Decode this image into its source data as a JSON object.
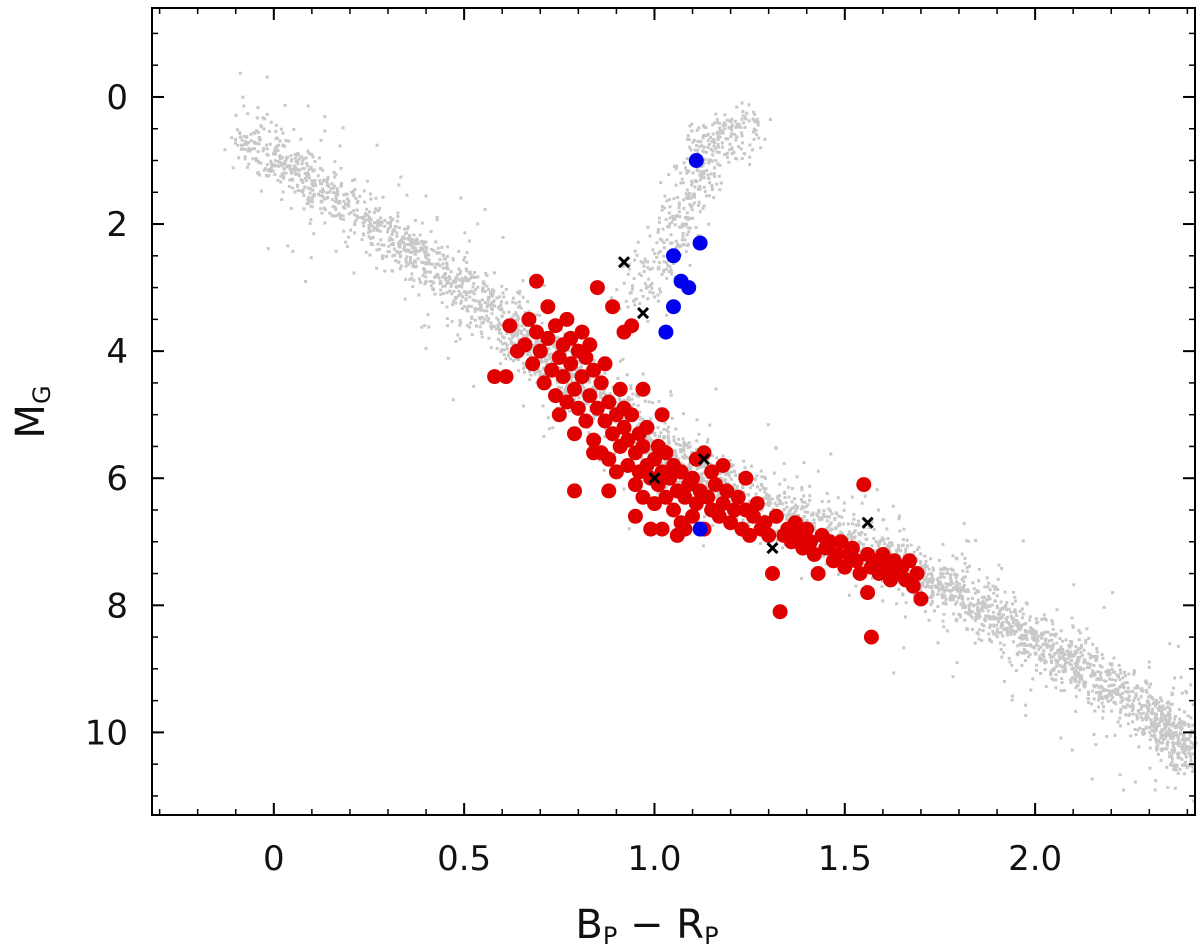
{
  "chart_data": {
    "type": "scatter",
    "title": "",
    "xlabel": {
      "main_b": "B",
      "sub_b": "P",
      "minus": " − ",
      "main_r": "R",
      "sub_r": "P"
    },
    "ylabel": {
      "main": "M",
      "sub": "G"
    },
    "xlim": [
      -0.32,
      2.42
    ],
    "ylim": [
      11.3,
      -1.4
    ],
    "y_inverted": true,
    "grid": false,
    "legend": "none",
    "x_ticks": [
      0,
      0.5,
      1.0,
      1.5,
      2.0
    ],
    "x_tick_labels": [
      "0",
      "0.5",
      "1.0",
      "1.5",
      "2.0"
    ],
    "y_ticks": [
      0,
      2,
      4,
      6,
      8,
      10
    ],
    "y_tick_labels": [
      "0",
      "2",
      "4",
      "6",
      "8",
      "10"
    ],
    "colors": {
      "background_stars": "#c8c8c8",
      "red": "#e00000",
      "blue": "#0000ee",
      "cross": "#000000"
    },
    "background_sequence": {
      "description_free": true,
      "main_sequence": [
        [
          -0.08,
          0.6
        ],
        [
          0.2,
          1.8
        ],
        [
          0.45,
          2.8
        ],
        [
          0.65,
          3.8
        ],
        [
          0.8,
          4.5
        ],
        [
          1.0,
          5.5
        ],
        [
          1.2,
          6.2
        ],
        [
          1.45,
          6.8
        ],
        [
          1.7,
          7.5
        ],
        [
          1.9,
          8.2
        ],
        [
          2.1,
          8.9
        ],
        [
          2.3,
          9.7
        ],
        [
          2.42,
          10.4
        ]
      ],
      "giant_branch": [
        [
          0.95,
          3.2
        ],
        [
          1.05,
          2.2
        ],
        [
          1.1,
          1.3
        ],
        [
          1.15,
          0.7
        ],
        [
          1.25,
          0.5
        ]
      ]
    },
    "series": [
      {
        "marker": "circle",
        "color": "#e00000",
        "points": [
          [
            0.61,
            4.4
          ],
          [
            0.62,
            3.6
          ],
          [
            0.64,
            4.0
          ],
          [
            0.66,
            3.9
          ],
          [
            0.67,
            3.5
          ],
          [
            0.68,
            4.2
          ],
          [
            0.69,
            3.7
          ],
          [
            0.69,
            2.9
          ],
          [
            0.7,
            4.0
          ],
          [
            0.71,
            4.5
          ],
          [
            0.72,
            3.3
          ],
          [
            0.72,
            3.8
          ],
          [
            0.73,
            4.3
          ],
          [
            0.74,
            4.7
          ],
          [
            0.74,
            3.6
          ],
          [
            0.75,
            4.1
          ],
          [
            0.75,
            5.0
          ],
          [
            0.76,
            3.9
          ],
          [
            0.76,
            4.4
          ],
          [
            0.77,
            3.5
          ],
          [
            0.77,
            4.8
          ],
          [
            0.78,
            4.2
          ],
          [
            0.78,
            3.8
          ],
          [
            0.79,
            4.6
          ],
          [
            0.79,
            5.3
          ],
          [
            0.8,
            4.0
          ],
          [
            0.8,
            4.9
          ],
          [
            0.81,
            3.7
          ],
          [
            0.81,
            4.4
          ],
          [
            0.82,
            4.1
          ],
          [
            0.82,
            5.1
          ],
          [
            0.83,
            4.7
          ],
          [
            0.83,
            3.9
          ],
          [
            0.84,
            4.3
          ],
          [
            0.84,
            5.4
          ],
          [
            0.85,
            4.9
          ],
          [
            0.85,
            3.0
          ],
          [
            0.86,
            4.5
          ],
          [
            0.86,
            5.6
          ],
          [
            0.87,
            5.1
          ],
          [
            0.87,
            4.2
          ],
          [
            0.88,
            4.8
          ],
          [
            0.88,
            5.7
          ],
          [
            0.89,
            5.3
          ],
          [
            0.89,
            3.3
          ],
          [
            0.9,
            5.0
          ],
          [
            0.9,
            5.9
          ],
          [
            0.91,
            5.5
          ],
          [
            0.91,
            4.6
          ],
          [
            0.92,
            5.2
          ],
          [
            0.92,
            3.7
          ],
          [
            0.93,
            5.8
          ],
          [
            0.93,
            5.4
          ],
          [
            0.94,
            5.0
          ],
          [
            0.94,
            3.6
          ],
          [
            0.95,
            5.6
          ],
          [
            0.95,
            6.1
          ],
          [
            0.96,
            5.3
          ],
          [
            0.96,
            5.9
          ],
          [
            0.97,
            5.5
          ],
          [
            0.97,
            6.3
          ],
          [
            0.98,
            5.8
          ],
          [
            0.98,
            5.2
          ],
          [
            0.99,
            6.0
          ],
          [
            1.0,
            5.7
          ],
          [
            1.0,
            6.4
          ],
          [
            1.01,
            5.5
          ],
          [
            1.01,
            6.1
          ],
          [
            1.02,
            5.9
          ],
          [
            1.02,
            6.8
          ],
          [
            1.03,
            6.3
          ],
          [
            1.03,
            5.6
          ],
          [
            1.04,
            6.0
          ],
          [
            1.05,
            6.5
          ],
          [
            1.05,
            5.8
          ],
          [
            1.06,
            6.2
          ],
          [
            1.07,
            6.7
          ],
          [
            1.07,
            5.9
          ],
          [
            1.08,
            6.3
          ],
          [
            1.09,
            6.1
          ],
          [
            1.1,
            6.6
          ],
          [
            1.1,
            6.0
          ],
          [
            1.11,
            6.4
          ],
          [
            1.12,
            6.2
          ],
          [
            1.13,
            6.8
          ],
          [
            1.14,
            6.3
          ],
          [
            1.15,
            6.5
          ],
          [
            1.15,
            5.9
          ],
          [
            1.16,
            6.1
          ],
          [
            1.17,
            6.6
          ],
          [
            1.18,
            6.4
          ],
          [
            1.19,
            6.2
          ],
          [
            1.2,
            6.7
          ],
          [
            1.21,
            6.5
          ],
          [
            1.22,
            6.3
          ],
          [
            1.23,
            6.8
          ],
          [
            1.24,
            6.5
          ],
          [
            1.25,
            6.9
          ],
          [
            1.26,
            6.6
          ],
          [
            1.27,
            6.4
          ],
          [
            1.28,
            6.8
          ],
          [
            1.29,
            6.7
          ],
          [
            1.3,
            6.9
          ],
          [
            1.31,
            7.5
          ],
          [
            1.32,
            6.6
          ],
          [
            1.33,
            8.1
          ],
          [
            1.34,
            6.9
          ],
          [
            1.35,
            6.8
          ],
          [
            1.36,
            7.0
          ],
          [
            1.37,
            6.7
          ],
          [
            1.38,
            6.9
          ],
          [
            1.39,
            7.1
          ],
          [
            1.4,
            6.8
          ],
          [
            1.41,
            7.0
          ],
          [
            1.42,
            7.2
          ],
          [
            1.43,
            7.5
          ],
          [
            1.44,
            6.9
          ],
          [
            1.45,
            7.1
          ],
          [
            1.46,
            7.0
          ],
          [
            1.47,
            7.3
          ],
          [
            1.48,
            7.2
          ],
          [
            1.49,
            7.0
          ],
          [
            1.5,
            7.4
          ],
          [
            1.51,
            7.2
          ],
          [
            1.52,
            7.1
          ],
          [
            1.53,
            7.3
          ],
          [
            1.54,
            7.5
          ],
          [
            1.55,
            6.1
          ],
          [
            1.56,
            7.2
          ],
          [
            1.56,
            7.8
          ],
          [
            1.57,
            7.4
          ],
          [
            1.57,
            8.5
          ],
          [
            1.58,
            7.3
          ],
          [
            1.59,
            7.5
          ],
          [
            1.6,
            7.2
          ],
          [
            1.61,
            7.4
          ],
          [
            1.62,
            7.6
          ],
          [
            1.63,
            7.3
          ],
          [
            1.64,
            7.5
          ],
          [
            1.65,
            7.4
          ],
          [
            1.66,
            7.6
          ],
          [
            1.67,
            7.3
          ],
          [
            1.68,
            7.7
          ],
          [
            1.69,
            7.5
          ],
          [
            1.7,
            7.9
          ],
          [
            0.79,
            6.2
          ],
          [
            0.84,
            5.6
          ],
          [
            0.88,
            6.2
          ],
          [
            0.99,
            6.8
          ],
          [
            1.06,
            6.9
          ],
          [
            1.13,
            5.6
          ],
          [
            0.58,
            4.4
          ],
          [
            0.97,
            4.6
          ],
          [
            1.02,
            5.0
          ],
          [
            1.11,
            5.7
          ],
          [
            1.18,
            5.8
          ],
          [
            1.24,
            6.0
          ],
          [
            0.92,
            4.9
          ],
          [
            0.95,
            6.6
          ],
          [
            1.08,
            6.8
          ]
        ]
      },
      {
        "marker": "circle",
        "color": "#0000ee",
        "points": [
          [
            1.11,
            1.0
          ],
          [
            1.12,
            2.3
          ],
          [
            1.05,
            2.5
          ],
          [
            1.07,
            2.9
          ],
          [
            1.09,
            3.0
          ],
          [
            1.05,
            3.3
          ],
          [
            1.03,
            3.7
          ],
          [
            1.12,
            6.8
          ]
        ]
      },
      {
        "marker": "x",
        "color": "#000000",
        "points": [
          [
            0.92,
            2.6
          ],
          [
            0.97,
            3.4
          ],
          [
            1.13,
            5.7
          ],
          [
            1.0,
            6.0
          ],
          [
            1.31,
            7.1
          ],
          [
            1.56,
            6.7
          ]
        ]
      }
    ]
  }
}
